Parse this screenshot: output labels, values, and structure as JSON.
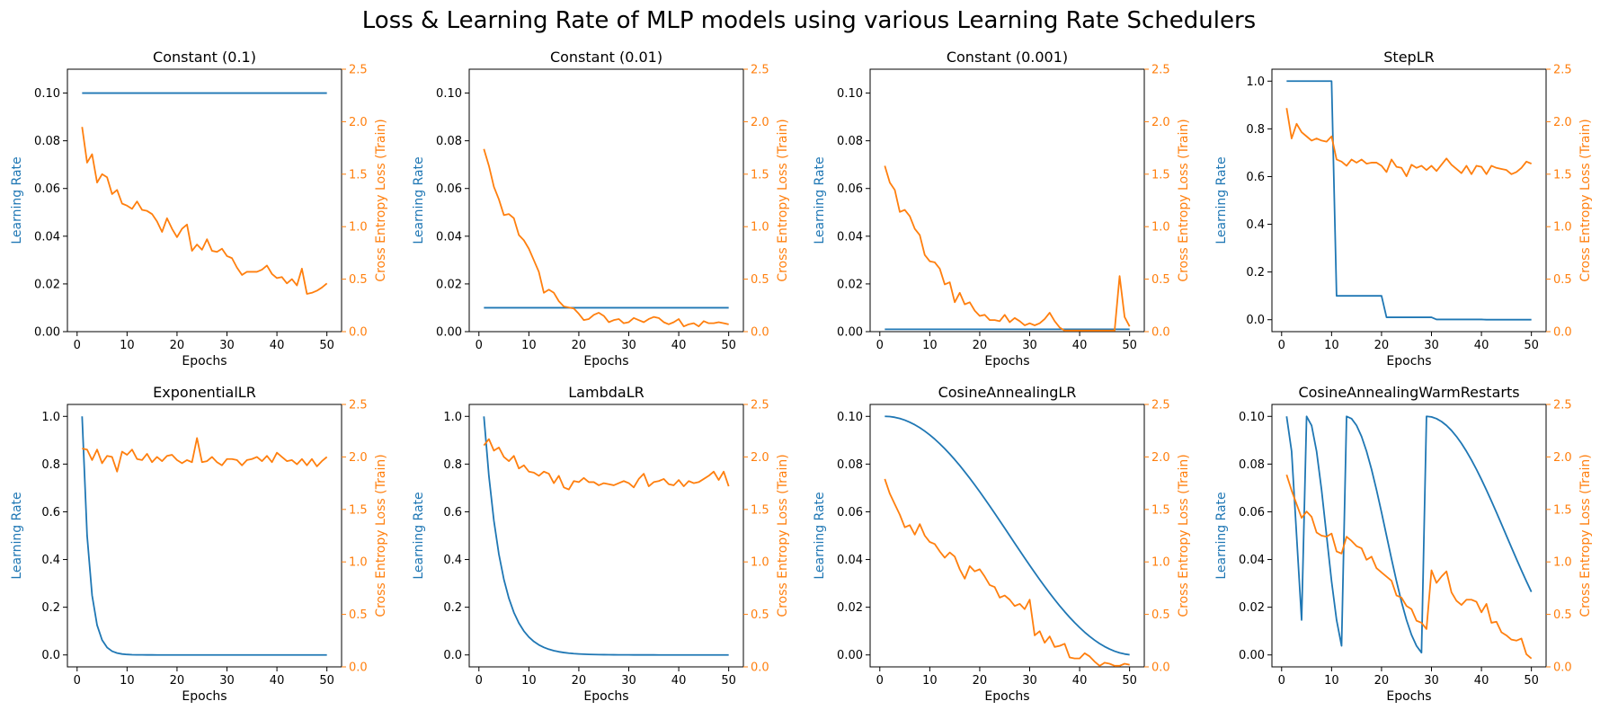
{
  "figure": {
    "title": "Loss & Learning Rate of MLP models using various Learning Rate Schedulers",
    "colors": {
      "lr": "#1f77b4",
      "loss": "#ff7f0e"
    }
  },
  "chart_data": [
    {
      "type": "line",
      "title": "Constant (0.1)",
      "xlabel": "Epochs",
      "ylabel_left": "Learning Rate",
      "ylabel_right": "Cross Entropy Loss (Train)",
      "xlim": [
        1,
        50
      ],
      "ylim_left": [
        0,
        0.11
      ],
      "ylim_right": [
        0,
        2.5
      ],
      "xticks": [
        0,
        10,
        20,
        30,
        40,
        50
      ],
      "yticks_left": [
        0.0,
        0.02,
        0.04,
        0.06,
        0.08,
        0.1
      ],
      "yticks_right": [
        0.0,
        0.5,
        1.0,
        1.5,
        2.0,
        2.5
      ],
      "series": [
        {
          "axis": "left",
          "lr": {
            "kind": "constant",
            "value": 0.1
          }
        },
        {
          "axis": "right",
          "loss": [
            1.95,
            1.61,
            1.69,
            1.42,
            1.5,
            1.47,
            1.31,
            1.35,
            1.22,
            1.2,
            1.17,
            1.24,
            1.16,
            1.15,
            1.12,
            1.05,
            0.95,
            1.08,
            0.98,
            0.9,
            0.98,
            1.02,
            0.77,
            0.83,
            0.78,
            0.88,
            0.77,
            0.76,
            0.79,
            0.72,
            0.7,
            0.61,
            0.54,
            0.57,
            0.57,
            0.57,
            0.59,
            0.63,
            0.55,
            0.51,
            0.52,
            0.46,
            0.5,
            0.44,
            0.6,
            0.36,
            0.37,
            0.39,
            0.42,
            0.46
          ]
        }
      ]
    },
    {
      "type": "line",
      "title": "Constant (0.01)",
      "xlabel": "Epochs",
      "ylabel_left": "Learning Rate",
      "ylabel_right": "Cross Entropy Loss (Train)",
      "xlim": [
        1,
        50
      ],
      "ylim_left": [
        0,
        0.11
      ],
      "ylim_right": [
        0,
        2.5
      ],
      "xticks": [
        0,
        10,
        20,
        30,
        40,
        50
      ],
      "yticks_left": [
        0.0,
        0.02,
        0.04,
        0.06,
        0.08,
        0.1
      ],
      "yticks_right": [
        0.0,
        0.5,
        1.0,
        1.5,
        2.0,
        2.5
      ],
      "series": [
        {
          "axis": "left",
          "lr": {
            "kind": "constant",
            "value": 0.01
          }
        },
        {
          "axis": "right",
          "loss": [
            1.74,
            1.58,
            1.38,
            1.26,
            1.11,
            1.12,
            1.08,
            0.92,
            0.87,
            0.79,
            0.68,
            0.57,
            0.37,
            0.4,
            0.37,
            0.29,
            0.24,
            0.23,
            0.22,
            0.17,
            0.11,
            0.12,
            0.16,
            0.18,
            0.15,
            0.09,
            0.11,
            0.12,
            0.08,
            0.09,
            0.13,
            0.11,
            0.09,
            0.12,
            0.14,
            0.13,
            0.09,
            0.07,
            0.09,
            0.12,
            0.05,
            0.07,
            0.08,
            0.05,
            0.1,
            0.08,
            0.08,
            0.09,
            0.08,
            0.07
          ]
        }
      ]
    },
    {
      "type": "line",
      "title": "Constant (0.001)",
      "xlabel": "Epochs",
      "ylabel_left": "Learning Rate",
      "ylabel_right": "Cross Entropy Loss (Train)",
      "xlim": [
        1,
        50
      ],
      "ylim_left": [
        0,
        0.11
      ],
      "ylim_right": [
        0,
        2.5
      ],
      "xticks": [
        0,
        10,
        20,
        30,
        40,
        50
      ],
      "yticks_left": [
        0.0,
        0.02,
        0.04,
        0.06,
        0.08,
        0.1
      ],
      "yticks_right": [
        0.0,
        0.5,
        1.0,
        1.5,
        2.0,
        2.5
      ],
      "series": [
        {
          "axis": "left",
          "lr": {
            "kind": "constant",
            "value": 0.001
          }
        },
        {
          "axis": "right",
          "loss": [
            1.58,
            1.42,
            1.35,
            1.14,
            1.16,
            1.1,
            0.98,
            0.92,
            0.73,
            0.67,
            0.66,
            0.6,
            0.45,
            0.47,
            0.28,
            0.37,
            0.26,
            0.28,
            0.2,
            0.15,
            0.16,
            0.11,
            0.11,
            0.1,
            0.16,
            0.09,
            0.13,
            0.1,
            0.06,
            0.08,
            0.06,
            0.08,
            0.12,
            0.18,
            0.1,
            0.04,
            0.01,
            0.01,
            0.01,
            0.01,
            0.01,
            0.01,
            0.01,
            0.01,
            0.01,
            0.01,
            0.01,
            0.53,
            0.14,
            0.05
          ]
        }
      ]
    },
    {
      "type": "line",
      "title": "StepLR",
      "xlabel": "Epochs",
      "ylabel_left": "Learning Rate",
      "ylabel_right": "Cross Entropy Loss (Train)",
      "xlim": [
        1,
        50
      ],
      "ylim_left": [
        -0.05,
        1.05
      ],
      "ylim_right": [
        0,
        2.5
      ],
      "xticks": [
        0,
        10,
        20,
        30,
        40,
        50
      ],
      "yticks_left": [
        0.0,
        0.2,
        0.4,
        0.6,
        0.8,
        1.0
      ],
      "yticks_right": [
        0.0,
        0.5,
        1.0,
        1.5,
        2.0,
        2.5
      ],
      "series": [
        {
          "axis": "left",
          "lr": {
            "kind": "step",
            "initial": 1.0,
            "gamma": 0.1,
            "step_size": 10
          }
        },
        {
          "axis": "right",
          "loss": [
            2.13,
            1.84,
            1.98,
            1.9,
            1.86,
            1.82,
            1.84,
            1.82,
            1.81,
            1.86,
            1.64,
            1.62,
            1.58,
            1.64,
            1.61,
            1.64,
            1.6,
            1.61,
            1.61,
            1.58,
            1.52,
            1.64,
            1.57,
            1.56,
            1.48,
            1.59,
            1.56,
            1.58,
            1.54,
            1.58,
            1.53,
            1.59,
            1.65,
            1.59,
            1.55,
            1.51,
            1.58,
            1.5,
            1.58,
            1.57,
            1.5,
            1.58,
            1.56,
            1.55,
            1.54,
            1.5,
            1.52,
            1.56,
            1.62,
            1.6
          ]
        }
      ]
    },
    {
      "type": "line",
      "title": "ExponentialLR",
      "xlabel": "Epochs",
      "ylabel_left": "Learning Rate",
      "ylabel_right": "Cross Entropy Loss (Train)",
      "xlim": [
        1,
        50
      ],
      "ylim_left": [
        -0.05,
        1.05
      ],
      "ylim_right": [
        0,
        2.5
      ],
      "xticks": [
        0,
        10,
        20,
        30,
        40,
        50
      ],
      "yticks_left": [
        0.0,
        0.2,
        0.4,
        0.6,
        0.8,
        1.0
      ],
      "yticks_right": [
        0.0,
        0.5,
        1.0,
        1.5,
        2.0,
        2.5
      ],
      "series": [
        {
          "axis": "left",
          "lr": {
            "kind": "exponential",
            "initial": 1.0,
            "gamma": 0.5
          }
        },
        {
          "axis": "right",
          "loss": [
            2.08,
            2.07,
            1.97,
            2.07,
            1.94,
            2.01,
            2.0,
            1.86,
            2.05,
            2.02,
            2.07,
            1.98,
            1.97,
            2.03,
            1.95,
            2.0,
            1.96,
            2.01,
            2.02,
            1.97,
            1.94,
            1.97,
            1.95,
            2.18,
            1.95,
            1.96,
            2.0,
            1.95,
            1.92,
            1.98,
            1.98,
            1.97,
            1.92,
            1.97,
            1.98,
            2.0,
            1.96,
            2.01,
            1.95,
            2.04,
            2.0,
            1.96,
            1.97,
            1.93,
            1.98,
            1.92,
            1.98,
            1.91,
            1.96,
            2.0
          ]
        }
      ]
    },
    {
      "type": "line",
      "title": "LambdaLR",
      "xlabel": "Epochs",
      "ylabel_left": "Learning Rate",
      "ylabel_right": "Cross Entropy Loss (Train)",
      "xlim": [
        1,
        50
      ],
      "ylim_left": [
        -0.05,
        1.05
      ],
      "ylim_right": [
        0,
        2.5
      ],
      "xticks": [
        0,
        10,
        20,
        30,
        40,
        50
      ],
      "yticks_left": [
        0.0,
        0.2,
        0.4,
        0.6,
        0.8,
        1.0
      ],
      "yticks_right": [
        0.0,
        0.5,
        1.0,
        1.5,
        2.0,
        2.5
      ],
      "series": [
        {
          "axis": "left",
          "lr": {
            "kind": "exponential",
            "initial": 1.0,
            "gamma": 0.75
          }
        },
        {
          "axis": "right",
          "loss": [
            2.11,
            2.17,
            2.06,
            2.09,
            2.0,
            1.96,
            2.01,
            1.89,
            1.92,
            1.86,
            1.85,
            1.82,
            1.86,
            1.84,
            1.75,
            1.82,
            1.71,
            1.69,
            1.77,
            1.76,
            1.8,
            1.76,
            1.76,
            1.73,
            1.75,
            1.74,
            1.73,
            1.75,
            1.77,
            1.75,
            1.71,
            1.79,
            1.84,
            1.72,
            1.76,
            1.77,
            1.79,
            1.74,
            1.73,
            1.78,
            1.72,
            1.77,
            1.75,
            1.76,
            1.79,
            1.82,
            1.86,
            1.78,
            1.86,
            1.72
          ]
        }
      ]
    },
    {
      "type": "line",
      "title": "CosineAnnealingLR",
      "xlabel": "Epochs",
      "ylabel_left": "Learning Rate",
      "ylabel_right": "Cross Entropy Loss (Train)",
      "xlim": [
        1,
        50
      ],
      "ylim_left": [
        -0.005,
        0.105
      ],
      "ylim_right": [
        0,
        2.5
      ],
      "xticks": [
        0,
        10,
        20,
        30,
        40,
        50
      ],
      "yticks_left": [
        0.0,
        0.02,
        0.04,
        0.06,
        0.08,
        0.1
      ],
      "yticks_right": [
        0.0,
        0.5,
        1.0,
        1.5,
        2.0,
        2.5
      ],
      "series": [
        {
          "axis": "left",
          "lr": {
            "kind": "cosine",
            "max": 0.1,
            "T_max": 50
          }
        },
        {
          "axis": "right",
          "loss": [
            1.79,
            1.65,
            1.55,
            1.45,
            1.33,
            1.35,
            1.26,
            1.36,
            1.25,
            1.19,
            1.17,
            1.1,
            1.04,
            1.09,
            1.05,
            0.93,
            0.84,
            0.96,
            0.91,
            0.93,
            0.86,
            0.78,
            0.76,
            0.66,
            0.68,
            0.64,
            0.58,
            0.6,
            0.55,
            0.64,
            0.3,
            0.34,
            0.23,
            0.29,
            0.19,
            0.2,
            0.22,
            0.09,
            0.08,
            0.08,
            0.13,
            0.1,
            0.05,
            0.01,
            0.04,
            0.03,
            0.01,
            0.01,
            0.03,
            0.02
          ]
        }
      ]
    },
    {
      "type": "line",
      "title": "CosineAnnealingWarmRestarts",
      "xlabel": "Epochs",
      "ylabel_left": "Learning Rate",
      "ylabel_right": "Cross Entropy Loss (Train)",
      "xlim": [
        1,
        50
      ],
      "ylim_left": [
        -0.005,
        0.105
      ],
      "ylim_right": [
        0,
        2.5
      ],
      "xticks": [
        0,
        10,
        20,
        30,
        40,
        50
      ],
      "yticks_left": [
        0.0,
        0.02,
        0.04,
        0.06,
        0.08,
        0.1
      ],
      "yticks_right": [
        0.0,
        0.5,
        1.0,
        1.5,
        2.0,
        2.5
      ],
      "series": [
        {
          "axis": "left",
          "lr": {
            "kind": "warm_restarts",
            "max": 0.1,
            "restart_epochs": [
              1,
              5,
              13,
              29
            ],
            "period_lengths": [
              4,
              8,
              16,
              32
            ]
          }
        },
        {
          "axis": "right",
          "loss": [
            1.83,
            1.68,
            1.55,
            1.42,
            1.48,
            1.43,
            1.28,
            1.25,
            1.24,
            1.27,
            1.1,
            1.08,
            1.24,
            1.2,
            1.15,
            1.13,
            1.02,
            1.05,
            0.94,
            0.9,
            0.86,
            0.82,
            0.68,
            0.66,
            0.58,
            0.55,
            0.44,
            0.42,
            0.36,
            0.92,
            0.8,
            0.86,
            0.91,
            0.71,
            0.63,
            0.59,
            0.64,
            0.64,
            0.62,
            0.52,
            0.6,
            0.42,
            0.43,
            0.33,
            0.3,
            0.26,
            0.25,
            0.27,
            0.12,
            0.08
          ]
        }
      ]
    }
  ]
}
